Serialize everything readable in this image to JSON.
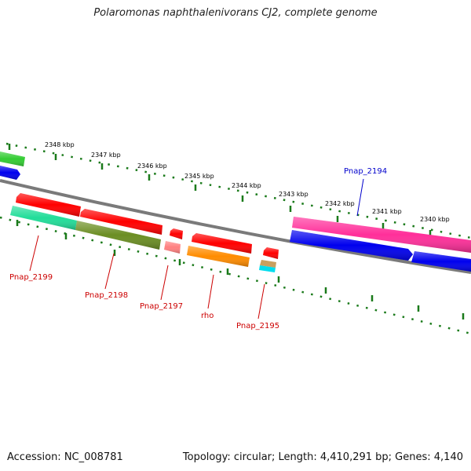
{
  "title": "Polaromonas naphthalenivorans CJ2, complete genome",
  "footer": {
    "accession": "Accession: NC_008781",
    "topology": "Topology: circular; Length: 4,410,291 bp; Genes: 4,140"
  },
  "scale_labels": [
    "2348 kbp",
    "2347 kbp",
    "2346 kbp",
    "2345 kbp",
    "2344 kbp",
    "2343 kbp",
    "2342 kbp",
    "2341 kbp",
    "2340 kbp"
  ],
  "gene_labels": [
    {
      "text": "Pnap_2199",
      "color": "#cc0000"
    },
    {
      "text": "Pnap_2198",
      "color": "#cc0000"
    },
    {
      "text": "Pnap_2197",
      "color": "#cc0000"
    },
    {
      "text": "rho",
      "color": "#cc0000"
    },
    {
      "text": "Pnap_2195",
      "color": "#cc0000"
    },
    {
      "text": "Pnap_2194",
      "color": "#0000cc"
    }
  ],
  "colors": {
    "backbone": "#777777",
    "tick": "#1a7a1a",
    "cds_red": "#ff0000",
    "cds_blue": "#0000ee",
    "cds_magenta": "#ff2f9a",
    "cds_green": "#33cc33",
    "teal": "#22dd99",
    "olive": "#6b8e23",
    "pink": "#ff8080",
    "orange": "#ff8c00",
    "cyan": "#00ddee",
    "tan": "#c8a060"
  }
}
